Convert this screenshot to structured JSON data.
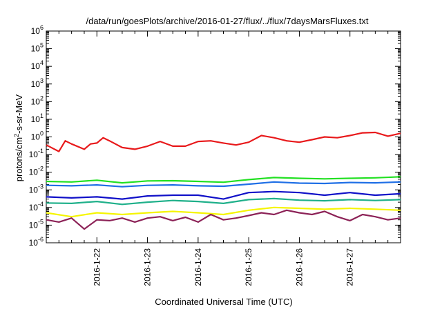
{
  "chart_data": {
    "type": "line",
    "title": "/data/run/goesPlots/archive/2016-01-27/flux/../flux/7daysMarsFluxes.txt",
    "xlabel": "Coordinated Universal Time (UTC)",
    "ylabel": "protons/cm",
    "ylabel_sup": "2",
    "ylabel_suffix": "-s-sr-MeV",
    "yscale": "log",
    "ylim": [
      1e-06,
      1000000.0
    ],
    "xlim": [
      "2016-01-21",
      "2016-01-28"
    ],
    "x_tick_labels": [
      "2016-1-22",
      "2016-1-23",
      "2016-1-24",
      "2016-1-25",
      "2016-1-26",
      "2016-1-27"
    ],
    "y_tick_labels": [
      {
        "base": "10",
        "exp": "-6"
      },
      {
        "base": "10",
        "exp": "-5"
      },
      {
        "base": "10",
        "exp": "-4"
      },
      {
        "base": "10",
        "exp": "-3"
      },
      {
        "base": "10",
        "exp": "-2"
      },
      {
        "base": "10",
        "exp": "-1"
      },
      {
        "base": "10",
        "exp": "0"
      },
      {
        "base": "10",
        "exp": "1"
      },
      {
        "base": "10",
        "exp": "2"
      },
      {
        "base": "10",
        "exp": "3"
      },
      {
        "base": "10",
        "exp": "4"
      },
      {
        "base": "10",
        "exp": "5"
      },
      {
        "base": "10",
        "exp": "6"
      }
    ],
    "grid": false,
    "legend": false,
    "series": [
      {
        "color": "#e8191b",
        "x": [
          "2016-01-21 00:00",
          "2016-01-21 06:00",
          "2016-01-21 09:00",
          "2016-01-21 12:00",
          "2016-01-21 18:00",
          "2016-01-21 21:00",
          "2016-01-22 00:00",
          "2016-01-22 03:00",
          "2016-01-22 06:00",
          "2016-01-22 12:00",
          "2016-01-22 18:00",
          "2016-01-23 00:00",
          "2016-01-23 06:00",
          "2016-01-23 12:00",
          "2016-01-23 18:00",
          "2016-01-24 00:00",
          "2016-01-24 06:00",
          "2016-01-24 12:00",
          "2016-01-24 18:00",
          "2016-01-25 00:00",
          "2016-01-25 06:00",
          "2016-01-25 12:00",
          "2016-01-25 18:00",
          "2016-01-26 00:00",
          "2016-01-26 06:00",
          "2016-01-26 12:00",
          "2016-01-26 18:00",
          "2016-01-27 00:00",
          "2016-01-27 06:00",
          "2016-01-27 12:00",
          "2016-01-27 18:00",
          "2016-01-28 00:00"
        ],
        "values": [
          0.35,
          0.15,
          0.6,
          0.4,
          0.2,
          0.4,
          0.45,
          0.9,
          0.6,
          0.25,
          0.2,
          0.3,
          0.55,
          0.3,
          0.3,
          0.55,
          0.6,
          0.45,
          0.35,
          0.5,
          1.2,
          0.9,
          0.6,
          0.5,
          0.7,
          1.0,
          0.9,
          1.2,
          1.7,
          1.8,
          1.1,
          1.6
        ]
      },
      {
        "color": "#22e022",
        "x": [
          "2016-01-21 00:00",
          "2016-01-21 12:00",
          "2016-01-22 00:00",
          "2016-01-22 12:00",
          "2016-01-23 00:00",
          "2016-01-23 12:00",
          "2016-01-24 00:00",
          "2016-01-24 12:00",
          "2016-01-25 00:00",
          "2016-01-25 12:00",
          "2016-01-26 00:00",
          "2016-01-26 12:00",
          "2016-01-27 00:00",
          "2016-01-27 12:00",
          "2016-01-28 00:00"
        ],
        "values": [
          0.003,
          0.0028,
          0.0035,
          0.0025,
          0.0032,
          0.0033,
          0.003,
          0.0027,
          0.0038,
          0.005,
          0.0045,
          0.0042,
          0.0045,
          0.0048,
          0.0055
        ]
      },
      {
        "color": "#1f6fe6",
        "x": [
          "2016-01-21 00:00",
          "2016-01-21 12:00",
          "2016-01-22 00:00",
          "2016-01-22 12:00",
          "2016-01-23 00:00",
          "2016-01-23 12:00",
          "2016-01-24 00:00",
          "2016-01-24 12:00",
          "2016-01-25 00:00",
          "2016-01-25 12:00",
          "2016-01-26 00:00",
          "2016-01-26 12:00",
          "2016-01-27 00:00",
          "2016-01-27 12:00",
          "2016-01-28 00:00"
        ],
        "values": [
          0.0018,
          0.0017,
          0.0019,
          0.0015,
          0.0018,
          0.0019,
          0.0017,
          0.0016,
          0.0021,
          0.0028,
          0.0024,
          0.0023,
          0.0026,
          0.0025,
          0.0028
        ]
      },
      {
        "color": "#1010c8",
        "x": [
          "2016-01-21 00:00",
          "2016-01-21 12:00",
          "2016-01-22 00:00",
          "2016-01-22 12:00",
          "2016-01-23 00:00",
          "2016-01-23 12:00",
          "2016-01-24 00:00",
          "2016-01-24 12:00",
          "2016-01-25 00:00",
          "2016-01-25 12:00",
          "2016-01-26 00:00",
          "2016-01-26 12:00",
          "2016-01-27 00:00",
          "2016-01-27 12:00",
          "2016-01-28 00:00"
        ],
        "values": [
          0.0004,
          0.00035,
          0.0004,
          0.0003,
          0.00045,
          0.0005,
          0.0005,
          0.0003,
          0.0007,
          0.0008,
          0.0007,
          0.0005,
          0.0007,
          0.0005,
          0.0006
        ]
      },
      {
        "color": "#1fb08a",
        "x": [
          "2016-01-21 00:00",
          "2016-01-21 12:00",
          "2016-01-22 00:00",
          "2016-01-22 12:00",
          "2016-01-23 00:00",
          "2016-01-23 12:00",
          "2016-01-24 00:00",
          "2016-01-24 12:00",
          "2016-01-25 00:00",
          "2016-01-25 12:00",
          "2016-01-26 00:00",
          "2016-01-26 12:00",
          "2016-01-27 00:00",
          "2016-01-27 12:00",
          "2016-01-28 00:00"
        ],
        "values": [
          0.00018,
          0.00017,
          0.00022,
          0.00015,
          0.0002,
          0.00025,
          0.00022,
          0.00017,
          0.00028,
          0.00032,
          0.00026,
          0.00024,
          0.00028,
          0.00025,
          0.00028
        ]
      },
      {
        "color": "#f5f500",
        "x": [
          "2016-01-21 00:00",
          "2016-01-21 12:00",
          "2016-01-22 00:00",
          "2016-01-22 12:00",
          "2016-01-23 00:00",
          "2016-01-23 12:00",
          "2016-01-24 00:00",
          "2016-01-24 12:00",
          "2016-01-25 00:00",
          "2016-01-25 12:00",
          "2016-01-26 00:00",
          "2016-01-26 12:00",
          "2016-01-27 00:00",
          "2016-01-27 12:00",
          "2016-01-28 00:00"
        ],
        "values": [
          5e-05,
          3e-05,
          5e-05,
          4e-05,
          5e-05,
          6e-05,
          5e-05,
          4e-05,
          7e-05,
          0.0001,
          9e-05,
          8e-05,
          9e-05,
          8e-05,
          7e-05
        ]
      },
      {
        "color": "#8c2257",
        "x": [
          "2016-01-21 00:00",
          "2016-01-21 06:00",
          "2016-01-21 12:00",
          "2016-01-21 18:00",
          "2016-01-22 00:00",
          "2016-01-22 06:00",
          "2016-01-22 12:00",
          "2016-01-22 18:00",
          "2016-01-23 00:00",
          "2016-01-23 06:00",
          "2016-01-23 12:00",
          "2016-01-23 18:00",
          "2016-01-24 00:00",
          "2016-01-24 06:00",
          "2016-01-24 12:00",
          "2016-01-24 18:00",
          "2016-01-25 00:00",
          "2016-01-25 06:00",
          "2016-01-25 12:00",
          "2016-01-25 18:00",
          "2016-01-26 00:00",
          "2016-01-26 06:00",
          "2016-01-26 12:00",
          "2016-01-26 18:00",
          "2016-01-27 00:00",
          "2016-01-27 06:00",
          "2016-01-27 12:00",
          "2016-01-27 18:00",
          "2016-01-28 00:00"
        ],
        "values": [
          2e-05,
          1.5e-05,
          2.5e-05,
          6e-06,
          2e-05,
          1.8e-05,
          2.5e-05,
          1.5e-05,
          2.5e-05,
          3e-05,
          1.8e-05,
          2.8e-05,
          1.5e-05,
          4e-05,
          2e-05,
          2.5e-05,
          3.5e-05,
          5e-05,
          4e-05,
          7e-05,
          5e-05,
          4e-05,
          6e-05,
          3e-05,
          1.8e-05,
          4e-05,
          3e-05,
          2e-05,
          2.5e-05
        ]
      }
    ]
  }
}
